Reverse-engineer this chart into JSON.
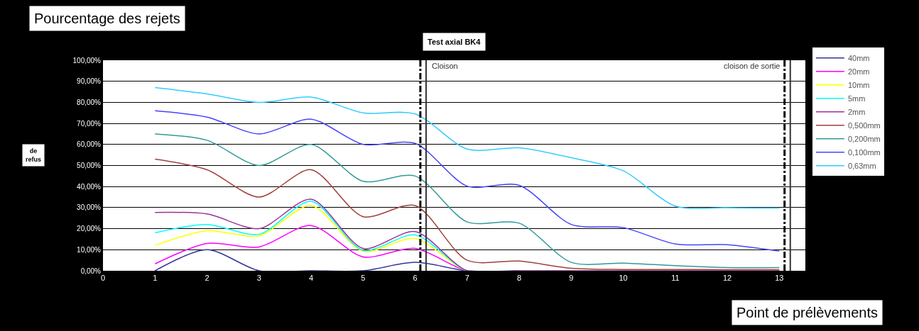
{
  "chart_data": {
    "type": "line",
    "title": "Test axial BK4",
    "xlabel": "Point de prélèvements",
    "ylabel": "Pourcentage des rejets",
    "annotations": [
      "de refus"
    ],
    "x": [
      1,
      2,
      3,
      4,
      5,
      6,
      7,
      8,
      9,
      10,
      11,
      12,
      13
    ],
    "series": [
      {
        "name": "40mm",
        "color": "#333399",
        "values": [
          0,
          10,
          0,
          0,
          0,
          4,
          0,
          0,
          null,
          null,
          null,
          null,
          null
        ]
      },
      {
        "name": "20mm",
        "color": "#ff00ff",
        "values": [
          3.3,
          13,
          11.3,
          21.5,
          6.6,
          10.6,
          0,
          0,
          null,
          null,
          null,
          null,
          null
        ]
      },
      {
        "name": "10mm",
        "color": "#ffff00",
        "values": [
          12,
          19,
          16.6,
          31,
          9.3,
          15.3,
          0,
          0,
          null,
          null,
          null,
          null,
          null
        ]
      },
      {
        "name": "5mm",
        "color": "#00ffff",
        "values": [
          18,
          22,
          17.3,
          33,
          9.7,
          17,
          0,
          0,
          null,
          null,
          null,
          null,
          null
        ]
      },
      {
        "name": "2mm",
        "color": "#993399",
        "values": [
          27.7,
          27,
          20,
          34,
          10.6,
          18.6,
          0,
          0,
          0,
          0,
          0,
          0,
          0
        ]
      },
      {
        "name": "0,500mm",
        "color": "#a0403a",
        "values": [
          53,
          48,
          35,
          48,
          25.7,
          31,
          5,
          4.6,
          1.2,
          0.6,
          0.6,
          0.5,
          0.5
        ]
      },
      {
        "name": "0,200mm",
        "color": "#339999",
        "values": [
          65,
          62,
          50,
          60,
          42.5,
          45,
          23.2,
          22.6,
          4,
          3.6,
          2.4,
          1.5,
          1.5
        ]
      },
      {
        "name": "0,100mm",
        "color": "#4444ff",
        "values": [
          76,
          73,
          65,
          72,
          60,
          60.5,
          40.2,
          40.6,
          22,
          20.5,
          12.7,
          12.4,
          9.3
        ]
      },
      {
        "name": "0,63mm",
        "color": "#33ccff",
        "values": [
          87,
          84,
          80,
          82.5,
          75,
          74.5,
          57.8,
          58.4,
          53.7,
          47.5,
          30.7,
          30,
          29.8
        ]
      }
    ],
    "ref_lines": [
      {
        "axis": "x",
        "value": 6.1,
        "label": "Cloison",
        "color": "#000000",
        "line_style": "dashdot"
      },
      {
        "axis": "x",
        "value": 6.21,
        "label": null,
        "color": "#333333",
        "line_style": "solid"
      },
      {
        "axis": "x",
        "value": 13.1,
        "label": "cloison de sortie",
        "color": "#000000",
        "line_style": "dashdot"
      },
      {
        "axis": "x",
        "value": 13.21,
        "label": null,
        "color": "#333333",
        "line_style": "solid"
      }
    ],
    "xlim": [
      0,
      13.5
    ],
    "xticks": [
      0,
      1,
      2,
      3,
      4,
      5,
      6,
      7,
      8,
      9,
      10,
      11,
      12,
      13
    ],
    "ylim": [
      0,
      100
    ],
    "yticks": [
      {
        "value": 0,
        "label": "0,00%"
      },
      {
        "value": 10,
        "label": "10,00%"
      },
      {
        "value": 20,
        "label": "20,00%"
      },
      {
        "value": 30,
        "label": "30,00%"
      },
      {
        "value": 40,
        "label": "40,00%"
      },
      {
        "value": 50,
        "label": "50,00%"
      },
      {
        "value": 60,
        "label": "60,00%"
      },
      {
        "value": 70,
        "label": "70,00%"
      },
      {
        "value": 80,
        "label": "80,00%"
      },
      {
        "value": 90,
        "label": "90,00%"
      },
      {
        "value": 100,
        "label": "100,00%"
      }
    ],
    "grid": "y",
    "legend": "right",
    "marker": "none",
    "line_style": "solid"
  }
}
